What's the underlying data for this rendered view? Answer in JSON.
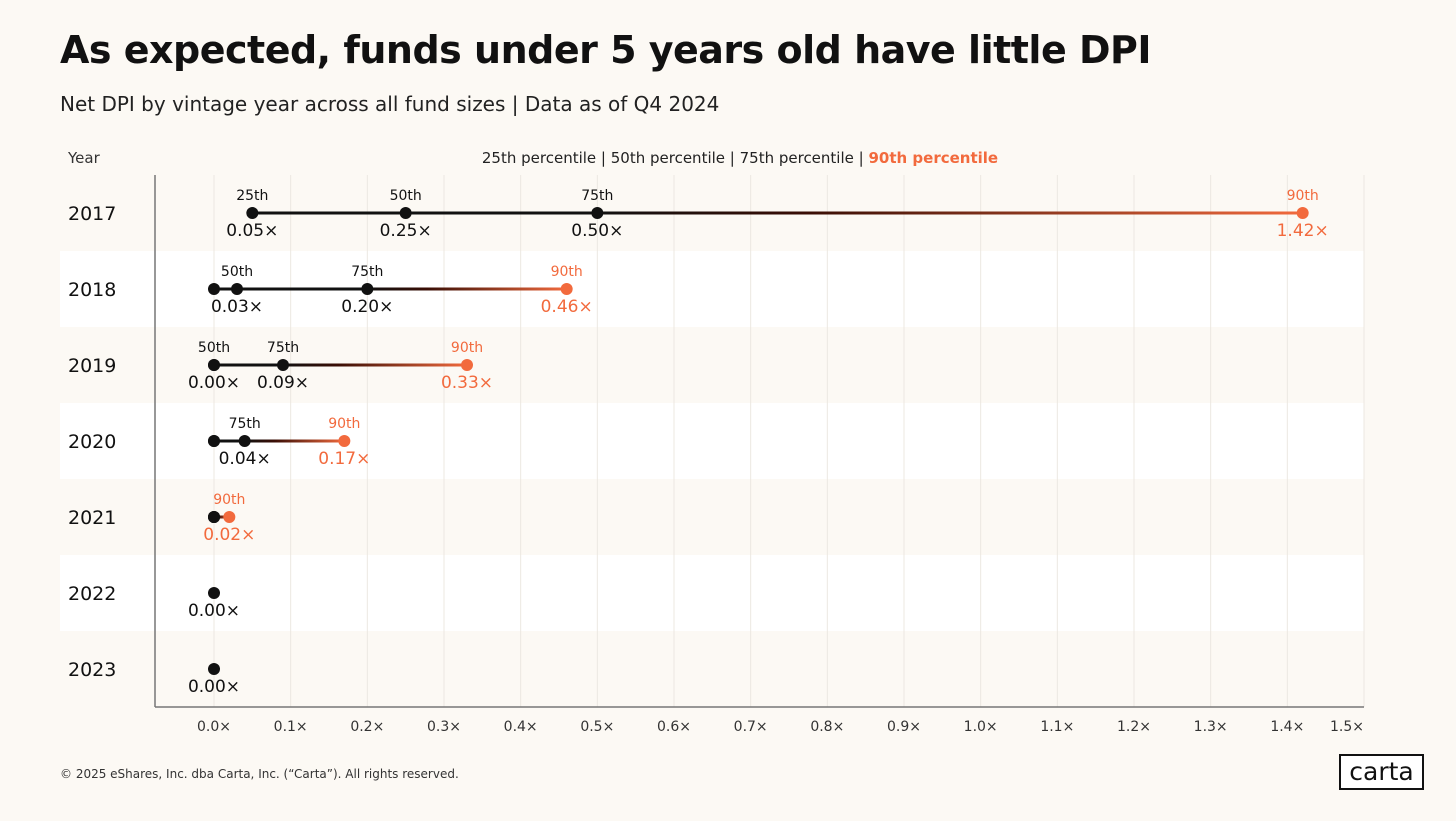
{
  "title": "As expected, funds under 5 years old have little DPI",
  "subtitle": "Net DPI by vintage year across all fund sizes | Data as of Q4 2024",
  "footer": "© 2025 eShares, Inc. dba Carta, Inc. (“Carta”). All rights reserved.",
  "logo": "carta",
  "colors": {
    "background": "#fcf9f4",
    "band": "#ffffff",
    "black": "#111111",
    "accent": "#f26a3d"
  },
  "chart_data": {
    "type": "dot-range",
    "ylabel": "Year",
    "legend": [
      {
        "label": "25th percentile",
        "color": "#222222"
      },
      {
        "label": "50th percentile",
        "color": "#222222"
      },
      {
        "label": "75th percentile",
        "color": "#222222"
      },
      {
        "label": "90th percentile",
        "color": "#f26a3d"
      }
    ],
    "legend_separator": "|",
    "legend_placement": "top-center",
    "xlim": [
      0,
      1.5
    ],
    "x_ticks": [
      "0.0×",
      "0.1×",
      "0.2×",
      "0.3×",
      "0.4×",
      "0.5×",
      "0.6×",
      "0.7×",
      "0.8×",
      "0.9×",
      "1.0×",
      "1.1×",
      "1.2×",
      "1.3×",
      "1.4×",
      "1.5×"
    ],
    "grid": "vertical",
    "rows": [
      {
        "year": "2017",
        "points": [
          {
            "p": "25th",
            "value": 0.05,
            "label": "25th",
            "value_label": "0.05×"
          },
          {
            "p": "50th",
            "value": 0.25,
            "label": "50th",
            "value_label": "0.25×"
          },
          {
            "p": "75th",
            "value": 0.5,
            "label": "75th",
            "value_label": "0.50×"
          },
          {
            "p": "90th",
            "value": 1.42,
            "label": "90th",
            "value_label": "1.42×"
          }
        ]
      },
      {
        "year": "2018",
        "points": [
          {
            "p": "25th",
            "value": 0.0
          },
          {
            "p": "50th",
            "value": 0.03,
            "label": "50th",
            "value_label": "0.03×"
          },
          {
            "p": "75th",
            "value": 0.2,
            "label": "75th",
            "value_label": "0.20×"
          },
          {
            "p": "90th",
            "value": 0.46,
            "label": "90th",
            "value_label": "0.46×"
          }
        ]
      },
      {
        "year": "2019",
        "points": [
          {
            "p": "25th",
            "value": 0.0
          },
          {
            "p": "50th",
            "value": 0.0,
            "label": "50th",
            "value_label": "0.00×"
          },
          {
            "p": "75th",
            "value": 0.09,
            "label": "75th",
            "value_label": "0.09×"
          },
          {
            "p": "90th",
            "value": 0.33,
            "label": "90th",
            "value_label": "0.33×"
          }
        ]
      },
      {
        "year": "2020",
        "points": [
          {
            "p": "25th",
            "value": 0.0
          },
          {
            "p": "50th",
            "value": 0.0
          },
          {
            "p": "75th",
            "value": 0.04,
            "label": "75th",
            "value_label": "0.04×"
          },
          {
            "p": "90th",
            "value": 0.17,
            "label": "90th",
            "value_label": "0.17×"
          }
        ]
      },
      {
        "year": "2021",
        "points": [
          {
            "p": "25th",
            "value": 0.0
          },
          {
            "p": "50th",
            "value": 0.0
          },
          {
            "p": "75th",
            "value": 0.0
          },
          {
            "p": "90th",
            "value": 0.02,
            "label": "90th",
            "value_label": "0.02×"
          }
        ]
      },
      {
        "year": "2022",
        "points": [
          {
            "p": "all",
            "value": 0.0,
            "value_label": "0.00×"
          }
        ]
      },
      {
        "year": "2023",
        "points": [
          {
            "p": "all",
            "value": 0.0,
            "value_label": "0.00×"
          }
        ]
      }
    ]
  }
}
